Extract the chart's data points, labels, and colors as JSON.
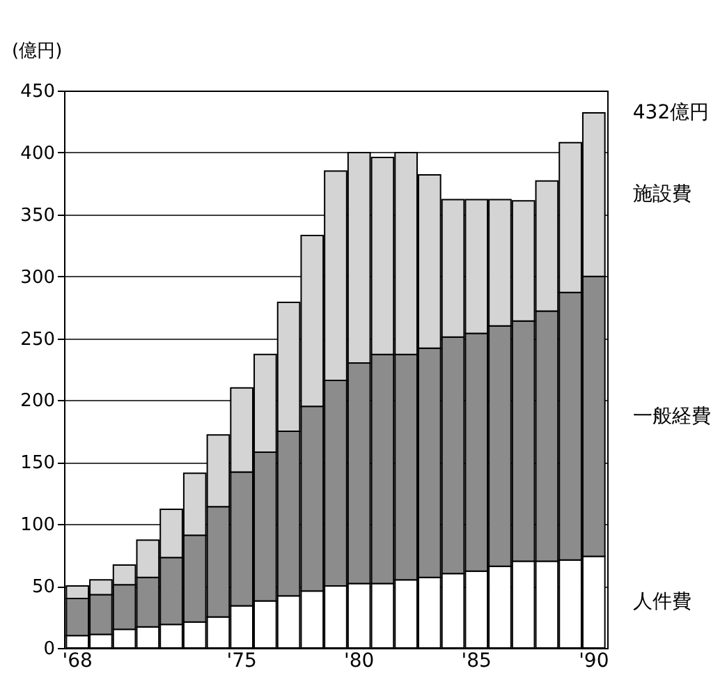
{
  "chart_data": {
    "type": "bar",
    "stacked": true,
    "ylabel": "(億円)",
    "categories": [
      "'68",
      null,
      null,
      null,
      null,
      null,
      null,
      "'75",
      null,
      null,
      null,
      null,
      "'80",
      null,
      null,
      null,
      null,
      "'85",
      null,
      null,
      null,
      null,
      "'90"
    ],
    "series": [
      {
        "name": "人件費",
        "color": "#ffffff",
        "values": [
          10,
          11,
          15,
          17,
          19,
          21,
          25,
          34,
          38,
          42,
          46,
          50,
          52,
          52,
          55,
          57,
          60,
          62,
          66,
          70,
          70,
          71,
          74
        ]
      },
      {
        "name": "一般経費",
        "color": "#8c8c8c",
        "values": [
          30,
          32,
          36,
          40,
          54,
          70,
          89,
          108,
          120,
          133,
          149,
          166,
          178,
          185,
          182,
          185,
          191,
          192,
          194,
          194,
          202,
          216,
          226
        ]
      },
      {
        "name": "施設費",
        "color": "#d4d4d4",
        "values": [
          10,
          12,
          16,
          30,
          39,
          50,
          58,
          68,
          79,
          104,
          138,
          169,
          170,
          159,
          163,
          140,
          111,
          108,
          102,
          97,
          105,
          121,
          132
        ]
      }
    ],
    "annotations": [
      {
        "text": "432億円",
        "x": "'90",
        "y": 432
      }
    ],
    "ylim": [
      0,
      450
    ],
    "yticks": [
      0,
      50,
      100,
      150,
      200,
      250,
      300,
      350,
      400,
      450
    ],
    "grid": "y",
    "legend": "right"
  }
}
